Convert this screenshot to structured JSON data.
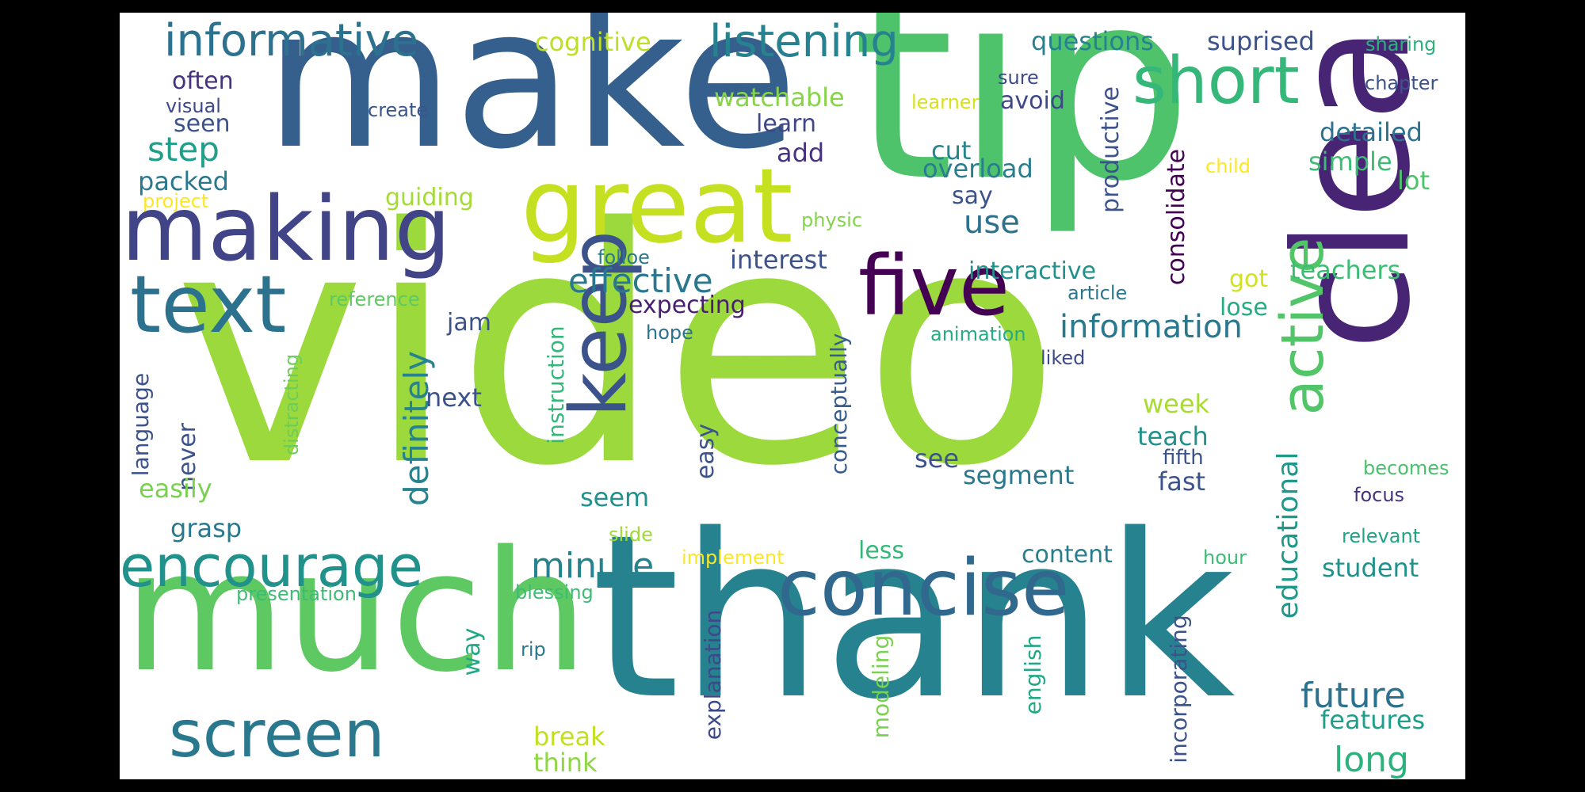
{
  "palette": {
    "background": "#ffffff",
    "frame": "#000000",
    "viridis": [
      "#440154",
      "#46327e",
      "#365c8d",
      "#277f8e",
      "#1fa187",
      "#4ac16d",
      "#a0da39",
      "#fde725"
    ]
  },
  "words": [
    {
      "text": "video",
      "color": "#9bd93c"
    },
    {
      "text": "tip",
      "color": "#4ec36b"
    },
    {
      "text": "make",
      "color": "#355f8d"
    },
    {
      "text": "thank",
      "color": "#26828e"
    },
    {
      "text": "much",
      "color": "#5ec962"
    },
    {
      "text": "clear",
      "color": "#482475"
    },
    {
      "text": "great",
      "color": "#c5e021"
    },
    {
      "text": "making",
      "color": "#414487"
    },
    {
      "text": "five",
      "color": "#440154"
    },
    {
      "text": "concise",
      "color": "#31688e"
    },
    {
      "text": "text",
      "color": "#2c728e"
    },
    {
      "text": "short",
      "color": "#35b779"
    },
    {
      "text": "keep",
      "color": "#3b528b"
    },
    {
      "text": "encourage",
      "color": "#21918c"
    },
    {
      "text": "screen",
      "color": "#2a788e"
    },
    {
      "text": "active",
      "color": "#52c569"
    },
    {
      "text": "informative",
      "color": "#2c728e"
    },
    {
      "text": "listening",
      "color": "#26828e"
    },
    {
      "text": "information",
      "color": "#2a788e"
    },
    {
      "text": "effective",
      "color": "#2a788e"
    },
    {
      "text": "definitely",
      "color": "#26828e"
    },
    {
      "text": "minute",
      "color": "#26828e"
    },
    {
      "text": "educational",
      "color": "#1f988b"
    },
    {
      "text": "future",
      "color": "#2c728e"
    },
    {
      "text": "long",
      "color": "#2db27d"
    },
    {
      "text": "consolidate",
      "color": "#440154"
    },
    {
      "text": "productive",
      "color": "#3b528b"
    },
    {
      "text": "instruction",
      "color": "#35b779"
    },
    {
      "text": "conceptually",
      "color": "#365c8d"
    },
    {
      "text": "explanation",
      "color": "#3e4989"
    },
    {
      "text": "incorporating",
      "color": "#3b528b"
    },
    {
      "text": "english",
      "color": "#22a884"
    },
    {
      "text": "modeling",
      "color": "#7ad151"
    },
    {
      "text": "language",
      "color": "#3b528b"
    },
    {
      "text": "distracting",
      "color": "#6ccd5a"
    },
    {
      "text": "questions",
      "color": "#26828e"
    },
    {
      "text": "suprised",
      "color": "#3b528b"
    },
    {
      "text": "cognitive",
      "color": "#bddf26"
    },
    {
      "text": "sharing",
      "color": "#2db27d"
    },
    {
      "text": "often",
      "color": "#46337f"
    },
    {
      "text": "visual",
      "color": "#3e4989"
    },
    {
      "text": "create",
      "color": "#39568c"
    },
    {
      "text": "seen",
      "color": "#3b528b"
    },
    {
      "text": "watchable",
      "color": "#86d549"
    },
    {
      "text": "learn",
      "color": "#404688"
    },
    {
      "text": "avoid",
      "color": "#3f4788"
    },
    {
      "text": "sure",
      "color": "#3e4a89"
    },
    {
      "text": "learner",
      "color": "#d8e219"
    },
    {
      "text": "chapter",
      "color": "#3b528b"
    },
    {
      "text": "step",
      "color": "#1f9e89"
    },
    {
      "text": "add",
      "color": "#46327e"
    },
    {
      "text": "cut",
      "color": "#25858e"
    },
    {
      "text": "detailed",
      "color": "#2c728e"
    },
    {
      "text": "simple",
      "color": "#3dbc74"
    },
    {
      "text": "child",
      "color": "#fde725"
    },
    {
      "text": "lot",
      "color": "#4ec36b"
    },
    {
      "text": "packed",
      "color": "#2a788e"
    },
    {
      "text": "overload",
      "color": "#287d8e"
    },
    {
      "text": "project",
      "color": "#fde725"
    },
    {
      "text": "guiding",
      "color": "#a5db36"
    },
    {
      "text": "say",
      "color": "#3b528b"
    },
    {
      "text": "physic",
      "color": "#84d44b"
    },
    {
      "text": "use",
      "color": "#2c728e"
    },
    {
      "text": "folloe",
      "color": "#2a788e"
    },
    {
      "text": "interest",
      "color": "#3b528b"
    },
    {
      "text": "interactive",
      "color": "#21918c"
    },
    {
      "text": "teachers",
      "color": "#3dbc74"
    },
    {
      "text": "got",
      "color": "#d2e21b"
    },
    {
      "text": "reference",
      "color": "#5ec962"
    },
    {
      "text": "article",
      "color": "#2a788e"
    },
    {
      "text": "lose",
      "color": "#25ac82"
    },
    {
      "text": "expecting",
      "color": "#481f70"
    },
    {
      "text": "jam",
      "color": "#3b528b"
    },
    {
      "text": "hope",
      "color": "#2c728e"
    },
    {
      "text": "animation",
      "color": "#25ac82"
    },
    {
      "text": "liked",
      "color": "#3e4a89"
    },
    {
      "text": "next",
      "color": "#3b528b"
    },
    {
      "text": "never",
      "color": "#3b528b"
    },
    {
      "text": "easy",
      "color": "#3b528b"
    },
    {
      "text": "week",
      "color": "#a8db34"
    },
    {
      "text": "teach",
      "color": "#21918c"
    },
    {
      "text": "fifth",
      "color": "#3b528b"
    },
    {
      "text": "see",
      "color": "#3b528b"
    },
    {
      "text": "segment",
      "color": "#2a788e"
    },
    {
      "text": "fast",
      "color": "#3b528b"
    },
    {
      "text": "becomes",
      "color": "#4ac16d"
    },
    {
      "text": "easily",
      "color": "#7ad151"
    },
    {
      "text": "seem",
      "color": "#21918c"
    },
    {
      "text": "focus",
      "color": "#46327e"
    },
    {
      "text": "grasp",
      "color": "#2a788e"
    },
    {
      "text": "slide",
      "color": "#a0da39"
    },
    {
      "text": "relevant",
      "color": "#20a386"
    },
    {
      "text": "less",
      "color": "#35b779"
    },
    {
      "text": "content",
      "color": "#287d8e"
    },
    {
      "text": "implement",
      "color": "#fde725"
    },
    {
      "text": "hour",
      "color": "#3dbc74"
    },
    {
      "text": "student",
      "color": "#21918c"
    },
    {
      "text": "presentation",
      "color": "#3dbc74"
    },
    {
      "text": "blessing",
      "color": "#3dbc74"
    },
    {
      "text": "way",
      "color": "#22a884"
    },
    {
      "text": "rip",
      "color": "#2a788e"
    },
    {
      "text": "features",
      "color": "#1f9e89"
    },
    {
      "text": "break",
      "color": "#c2df23"
    },
    {
      "text": "think",
      "color": "#8ed645"
    }
  ]
}
